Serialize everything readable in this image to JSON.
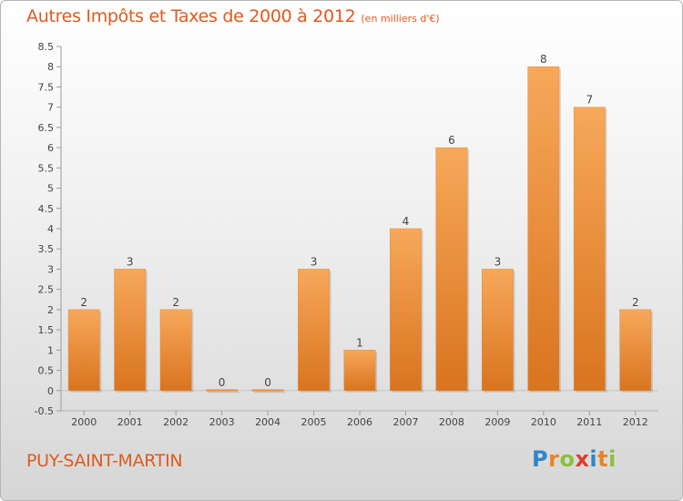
{
  "title": "Autres Impôts et Taxes de 2000 à 2012",
  "unit": "(en milliers d'€)",
  "commune": "PUY-SAINT-MARTIN",
  "logo": {
    "letters": [
      "P",
      "r",
      "o",
      "x",
      "i",
      "t",
      "i"
    ],
    "colors": [
      "#2f86c8",
      "#e8852a",
      "#8cbf3f",
      "#e03c2a",
      "#2f86c8",
      "#e8852a",
      "#8cbf3f"
    ]
  },
  "colors": {
    "bar_light": "#f7a85a",
    "bar_dark": "#d9741f",
    "title": "#e05a1e"
  },
  "chart_data": {
    "type": "bar",
    "categories": [
      "2000",
      "2001",
      "2002",
      "2003",
      "2004",
      "2005",
      "2006",
      "2007",
      "2008",
      "2009",
      "2010",
      "2011",
      "2012"
    ],
    "values": [
      2,
      3,
      2,
      0,
      0,
      3,
      1,
      4,
      6,
      3,
      8,
      7,
      2
    ],
    "data_labels": [
      "2",
      "3",
      "2",
      "0",
      "0",
      "3",
      "1",
      "4",
      "6",
      "3",
      "8",
      "7",
      "2"
    ],
    "yticks": [
      "-0.5",
      "0",
      "0.5",
      "1",
      "1.5",
      "2",
      "2.5",
      "3",
      "3.5",
      "4",
      "4.5",
      "5",
      "5.5",
      "6",
      "6.5",
      "7",
      "7.5",
      "8",
      "8.5"
    ],
    "ylim": [
      -0.5,
      8.5
    ],
    "grid": false
  }
}
